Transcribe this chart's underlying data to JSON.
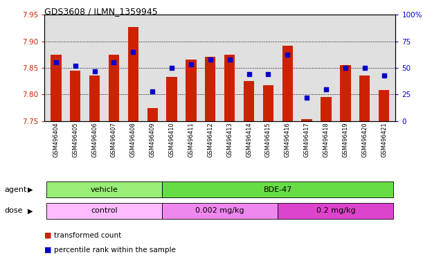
{
  "title": "GDS3608 / ILMN_1359945",
  "samples": [
    "GSM496404",
    "GSM496405",
    "GSM496406",
    "GSM496407",
    "GSM496408",
    "GSM496409",
    "GSM496410",
    "GSM496411",
    "GSM496412",
    "GSM496413",
    "GSM496414",
    "GSM496415",
    "GSM496416",
    "GSM496417",
    "GSM496418",
    "GSM496419",
    "GSM496420",
    "GSM496421"
  ],
  "bar_values": [
    7.875,
    7.845,
    7.835,
    7.875,
    7.927,
    7.775,
    7.833,
    7.865,
    7.871,
    7.875,
    7.825,
    7.817,
    7.891,
    7.753,
    7.795,
    7.855,
    7.836,
    7.808
  ],
  "blue_values": [
    55,
    52,
    47,
    55,
    65,
    28,
    50,
    53,
    58,
    58,
    44,
    44,
    62,
    22,
    30,
    50,
    50,
    43
  ],
  "bar_bottom": 7.75,
  "ylim_left": [
    7.75,
    7.95
  ],
  "ylim_right": [
    0,
    100
  ],
  "yticks_left": [
    7.75,
    7.8,
    7.85,
    7.9,
    7.95
  ],
  "yticks_right": [
    0,
    25,
    50,
    75,
    100
  ],
  "ytick_labels_right": [
    "0",
    "25",
    "50",
    "75",
    "100%"
  ],
  "bar_color": "#cc2200",
  "blue_color": "#0000cc",
  "agent_vehicle_color": "#99ee77",
  "agent_bde47_color": "#66dd44",
  "dose_control_color": "#ffbbff",
  "dose_low_color": "#ee88ee",
  "dose_high_color": "#dd44cc",
  "legend_bar_label": "transformed count",
  "legend_blue_label": "percentile rank within the sample",
  "agent_label": "agent",
  "dose_label": "dose",
  "bg_color": "#e0e0e0"
}
